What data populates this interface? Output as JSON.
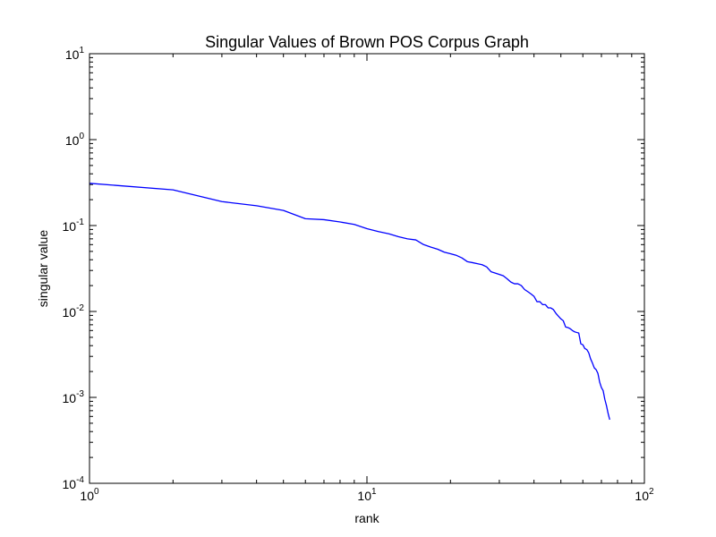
{
  "chart_data": {
    "type": "line",
    "title": "Singular Values of Brown POS Corpus Graph",
    "xlabel": "rank",
    "ylabel": "singular value",
    "xscale": "log",
    "yscale": "log",
    "xlim": [
      1,
      100
    ],
    "ylim": [
      0.0001,
      10
    ],
    "grid": false,
    "legend": "none",
    "line_color": "#0000ff",
    "x_ticks": [
      {
        "base": "10",
        "exp": "0",
        "value": 1
      },
      {
        "base": "10",
        "exp": "1",
        "value": 10
      },
      {
        "base": "10",
        "exp": "2",
        "value": 100
      }
    ],
    "y_ticks": [
      {
        "base": "10",
        "exp": "-4",
        "value": 0.0001
      },
      {
        "base": "10",
        "exp": "-3",
        "value": 0.001
      },
      {
        "base": "10",
        "exp": "-2",
        "value": 0.01
      },
      {
        "base": "10",
        "exp": "-1",
        "value": 0.1
      },
      {
        "base": "10",
        "exp": "0",
        "value": 1
      },
      {
        "base": "10",
        "exp": "1",
        "value": 10
      }
    ],
    "series": [
      {
        "points": [
          [
            1,
            0.31
          ],
          [
            2,
            0.26
          ],
          [
            3,
            0.19
          ],
          [
            4,
            0.17
          ],
          [
            5,
            0.15
          ],
          [
            6,
            0.12
          ],
          [
            7,
            0.117
          ],
          [
            8,
            0.11
          ],
          [
            9,
            0.103
          ],
          [
            10,
            0.092
          ],
          [
            11,
            0.085
          ],
          [
            12,
            0.08
          ],
          [
            13,
            0.074
          ],
          [
            14,
            0.07
          ],
          [
            15,
            0.068
          ],
          [
            16,
            0.06
          ],
          [
            17,
            0.056
          ],
          [
            18,
            0.053
          ],
          [
            19,
            0.049
          ],
          [
            20,
            0.047
          ],
          [
            21,
            0.045
          ],
          [
            22,
            0.042
          ],
          [
            23,
            0.038
          ],
          [
            24,
            0.037
          ],
          [
            25,
            0.036
          ],
          [
            26,
            0.035
          ],
          [
            27,
            0.033
          ],
          [
            28,
            0.029
          ],
          [
            29,
            0.028
          ],
          [
            30,
            0.027
          ],
          [
            31,
            0.026
          ],
          [
            32,
            0.024
          ],
          [
            33,
            0.022
          ],
          [
            34,
            0.021
          ],
          [
            35,
            0.021
          ],
          [
            36,
            0.02
          ],
          [
            37,
            0.018
          ],
          [
            38,
            0.017
          ],
          [
            39,
            0.016
          ],
          [
            40,
            0.015
          ],
          [
            41,
            0.013
          ],
          [
            42,
            0.013
          ],
          [
            43,
            0.012
          ],
          [
            44,
            0.012
          ],
          [
            45,
            0.011
          ],
          [
            46,
            0.011
          ],
          [
            47,
            0.0105
          ],
          [
            48,
            0.0095
          ],
          [
            49,
            0.0088
          ],
          [
            50,
            0.0082
          ],
          [
            51,
            0.0078
          ],
          [
            52,
            0.0066
          ],
          [
            53,
            0.0065
          ],
          [
            54,
            0.0063
          ],
          [
            55,
            0.006
          ],
          [
            56,
            0.0058
          ],
          [
            57,
            0.0057
          ],
          [
            58,
            0.0056
          ],
          [
            59,
            0.0042
          ],
          [
            60,
            0.0041
          ],
          [
            61,
            0.0037
          ],
          [
            62,
            0.0036
          ],
          [
            63,
            0.0033
          ],
          [
            64,
            0.0028
          ],
          [
            65,
            0.0025
          ],
          [
            66,
            0.0022
          ],
          [
            67,
            0.0021
          ],
          [
            68,
            0.0019
          ],
          [
            69,
            0.0015
          ],
          [
            70,
            0.0013
          ],
          [
            71,
            0.0012
          ],
          [
            72,
            0.00095
          ],
          [
            73,
            0.0008
          ],
          [
            74,
            0.00065
          ],
          [
            75,
            0.00055
          ]
        ]
      }
    ]
  }
}
